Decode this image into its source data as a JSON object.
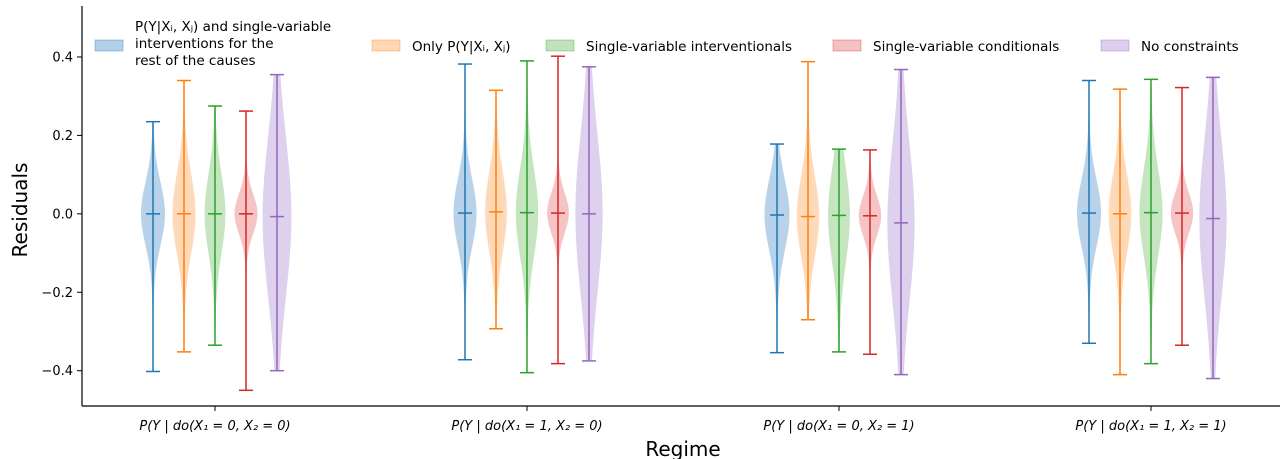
{
  "chart_data": {
    "type": "violin",
    "xlabel": "Regime",
    "ylabel": "Residuals",
    "ylim": [
      -0.49,
      0.53
    ],
    "yticks": [
      -0.4,
      -0.2,
      0.0,
      0.2,
      0.4
    ],
    "ytick_labels": [
      "−0.4",
      "−0.2",
      "0.0",
      "0.2",
      "0.4"
    ],
    "grid": false,
    "legend_position": "top",
    "categories": [
      "P(Y | do(X₁ = 0, X₂ = 0)",
      "P(Y | do(X₁ = 1, X₂ = 0)",
      "P(Y | do(X₁ = 0, X₂ = 1)",
      "P(Y | do(X₁ = 1, X₂ = 1)"
    ],
    "series": [
      {
        "name": "P(Y|Xᵢ, Xⱼ) and single-variable interventions for the rest of the causes",
        "legend_lines": [
          "P(Y|Xᵢ, Xⱼ) and single-variable",
          " interventions for the",
          "rest of the causes"
        ],
        "color": "#1f77b4",
        "fill": "#a6c8e4",
        "max": [
          0.235,
          0.382,
          0.178,
          0.34
        ],
        "min": [
          -0.402,
          -0.372,
          -0.354,
          -0.33
        ],
        "median": [
          0.0,
          0.002,
          -0.003,
          0.002
        ],
        "spread": [
          0.08,
          0.085,
          0.09,
          0.085
        ],
        "width": [
          0.75,
          0.72,
          0.78,
          0.75
        ]
      },
      {
        "name": "Only P(Y|Xᵢ, Xⱼ)",
        "legend_lines": [
          "Only P(Y|Xᵢ, Xⱼ)"
        ],
        "color": "#ff7f0e",
        "fill": "#ffd0a6",
        "max": [
          0.34,
          0.315,
          0.388,
          0.318
        ],
        "min": [
          -0.352,
          -0.293,
          -0.27,
          -0.41
        ],
        "median": [
          0.0,
          0.005,
          -0.007,
          0.0
        ],
        "spread": [
          0.1,
          0.1,
          0.1,
          0.1
        ],
        "width": [
          0.72,
          0.68,
          0.7,
          0.7
        ]
      },
      {
        "name": "Single-variable interventionals",
        "legend_lines": [
          "Single-variable interventionals"
        ],
        "color": "#2ca02c",
        "fill": "#b5deb0",
        "max": [
          0.275,
          0.39,
          0.165,
          0.343
        ],
        "min": [
          -0.335,
          -0.405,
          -0.352,
          -0.382
        ],
        "median": [
          0.0,
          0.003,
          -0.004,
          0.003
        ],
        "spread": [
          0.1,
          0.11,
          0.12,
          0.11
        ],
        "width": [
          0.65,
          0.7,
          0.68,
          0.72
        ]
      },
      {
        "name": "Single-variable conditionals",
        "legend_lines": [
          "Single-variable conditionals"
        ],
        "color": "#d62728",
        "fill": "#f2b5b6",
        "max": [
          0.262,
          0.402,
          0.163,
          0.322
        ],
        "min": [
          -0.45,
          -0.382,
          -0.358,
          -0.335
        ],
        "median": [
          0.0,
          0.002,
          -0.005,
          0.002
        ],
        "spread": [
          0.05,
          0.05,
          0.05,
          0.05
        ],
        "width": [
          0.72,
          0.68,
          0.7,
          0.7
        ]
      },
      {
        "name": "No constraints",
        "legend_lines": [
          "No constraints"
        ],
        "color": "#9467bd",
        "fill": "#d6c6e9",
        "max": [
          0.355,
          0.375,
          0.368,
          0.348
        ],
        "min": [
          -0.4,
          -0.375,
          -0.41,
          -0.42
        ],
        "median": [
          -0.007,
          0.0,
          -0.023,
          -0.012
        ],
        "spread": [
          0.2,
          0.2,
          0.2,
          0.2
        ],
        "width": [
          0.9,
          0.85,
          0.85,
          0.85
        ]
      }
    ]
  }
}
